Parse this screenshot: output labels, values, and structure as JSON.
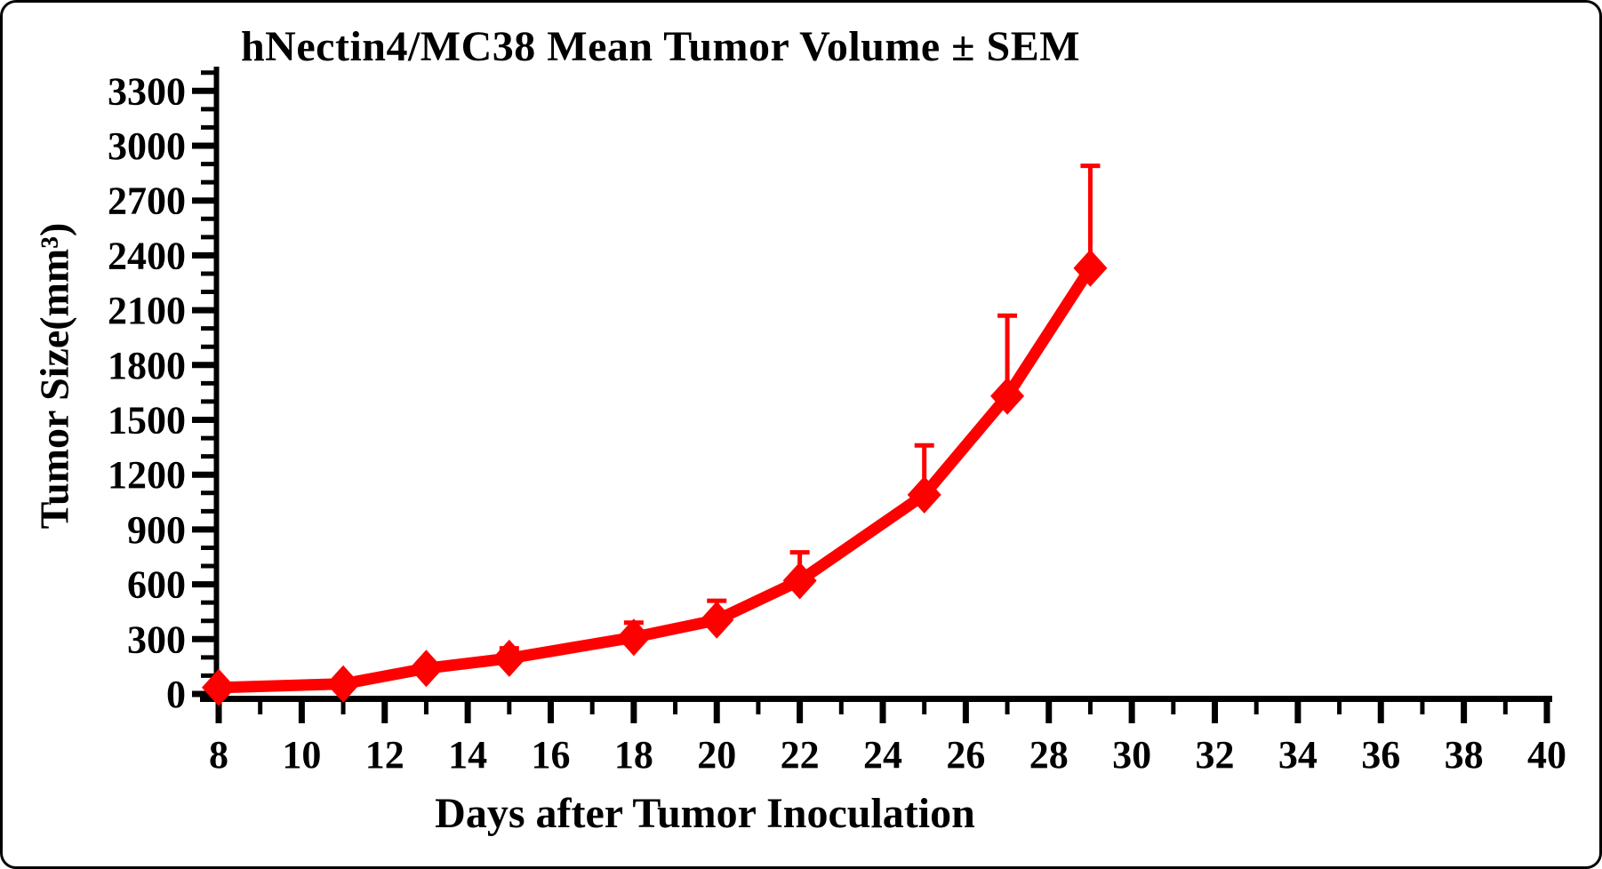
{
  "colors": {
    "series": "#ff0000",
    "axis": "#000000",
    "background": "#ffffff"
  },
  "chart_data": {
    "type": "line",
    "title": "hNectin4/MC38 Mean Tumor Volume ± SEM",
    "xlabel": "Days after Tumor Inoculation",
    "ylabel": "Tumor Size(mm³)",
    "grid": false,
    "legend": false,
    "error_bars": "upper SEM caps only",
    "marker": "diamond",
    "x_axis": {
      "min": 8,
      "max": 40,
      "major_step": 2,
      "minor_step": 1,
      "tick_labels": [
        "8",
        "10",
        "12",
        "14",
        "16",
        "18",
        "20",
        "22",
        "24",
        "26",
        "28",
        "30",
        "32",
        "34",
        "36",
        "38",
        "40"
      ]
    },
    "y_axis": {
      "min": 0,
      "max": 3300,
      "major_step": 300,
      "minor_step": 100,
      "minor_overshoot": 3400,
      "tick_labels": [
        "0",
        "300",
        "600",
        "900",
        "1200",
        "1500",
        "1800",
        "2100",
        "2400",
        "2700",
        "3000",
        "3300"
      ]
    },
    "series": [
      {
        "name": "hNectin4/MC38",
        "color": "#ff0000",
        "x": [
          8,
          11,
          13,
          15,
          18,
          20,
          22,
          25,
          27,
          29
        ],
        "mean": [
          35,
          55,
          140,
          195,
          310,
          405,
          620,
          1090,
          1630,
          2330
        ],
        "sem": [
          0,
          0,
          0,
          55,
          80,
          105,
          155,
          270,
          440,
          560
        ]
      }
    ]
  }
}
